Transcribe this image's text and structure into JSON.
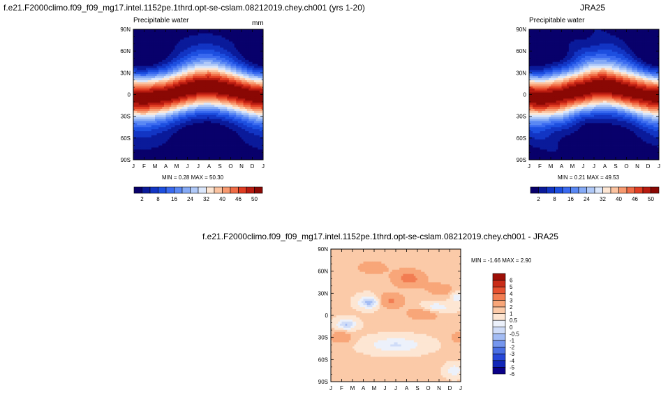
{
  "charts": {
    "model": {
      "title": "f.e21.F2000climo.f09_f09_mg17.intel.1152pe.1thrd.opt-se-cslam.08212019.chey.ch001 (yrs 1-20)",
      "subtitle": "Precipitable water",
      "units": "mm",
      "stats": "MIN =   0.28 MAX =  50.30"
    },
    "obs": {
      "title": "JRA25",
      "subtitle": "Precipitable water",
      "stats": "MIN =   0.21 MAX =  49.53"
    },
    "diff": {
      "title": "f.e21.F2000climo.f09_f09_mg17.intel.1152pe.1thrd.opt-se-cslam.08212019.chey.ch001 - JRA25",
      "stats": "MIN =  -1.66 MAX =   2.90"
    }
  },
  "axes": {
    "x_ticks": [
      "J",
      "F",
      "M",
      "A",
      "M",
      "J",
      "J",
      "A",
      "S",
      "O",
      "N",
      "D",
      "J"
    ],
    "y_ticks": [
      "90N",
      "60N",
      "30N",
      "0",
      "30S",
      "60S",
      "90S"
    ]
  },
  "colors": {
    "main_levels": [
      "#08006b",
      "#0a1a9a",
      "#1235c4",
      "#1d4fe0",
      "#3a6af0",
      "#5a88f4",
      "#85aaf6",
      "#b0c9f8",
      "#dbe7fb",
      "#fde6d3",
      "#fbc3a0",
      "#f89a70",
      "#f06c46",
      "#e03d22",
      "#b81b10",
      "#8a0804"
    ],
    "diff_levels": [
      "#0a0088",
      "#1126b8",
      "#2647d8",
      "#4a6fe4",
      "#7596ee",
      "#a3bcf4",
      "#cfdcf8",
      "#ecf1fb",
      "#fde6d3",
      "#fbcaa8",
      "#f8a679",
      "#f27d52",
      "#e65130",
      "#c92c18",
      "#9e0f07"
    ]
  },
  "colorbars": {
    "main_labels": [
      "2",
      "8",
      "16",
      "24",
      "32",
      "40",
      "46",
      "50"
    ],
    "diff_labels": [
      "6",
      "5",
      "4",
      "3",
      "2",
      "1",
      "0.5",
      "0",
      "-0.5",
      "-1",
      "-2",
      "-3",
      "-4",
      "-5",
      "-6"
    ]
  },
  "chart_data": [
    {
      "type": "heatmap",
      "title": "f.e21.F2000climo.f09_f09_mg17.intel.1152pe.1thrd.opt-se-cslam.08212019.chey.ch001 (yrs 1-20)",
      "subtitle": "Precipitable water",
      "units": "mm",
      "x": [
        "J",
        "F",
        "M",
        "A",
        "M",
        "J",
        "J",
        "A",
        "S",
        "O",
        "N",
        "D",
        "J"
      ],
      "y": [
        "90N",
        "60N",
        "30N",
        "0",
        "30S",
        "60S",
        "90S"
      ],
      "levels": [
        2,
        8,
        16,
        24,
        32,
        40,
        46,
        50
      ],
      "itcz_lat_by_month": [
        -4,
        -5,
        -3,
        -1,
        3,
        7,
        10,
        11,
        9,
        6,
        2,
        -2,
        -4
      ],
      "min": 0.28,
      "max": 50.3
    },
    {
      "type": "heatmap",
      "title": "JRA25",
      "subtitle": "Precipitable water",
      "x": [
        "J",
        "F",
        "M",
        "A",
        "M",
        "J",
        "J",
        "A",
        "S",
        "O",
        "N",
        "D",
        "J"
      ],
      "y": [
        "90N",
        "60N",
        "30N",
        "0",
        "30S",
        "60S",
        "90S"
      ],
      "levels": [
        2,
        8,
        16,
        24,
        32,
        40,
        46,
        50
      ],
      "itcz_lat_by_month": [
        -4,
        -5,
        -3,
        -1,
        3,
        7,
        10,
        11,
        9,
        6,
        2,
        -2,
        -4
      ],
      "min": 0.21,
      "max": 49.53
    },
    {
      "type": "heatmap",
      "title": "f.e21.F2000climo.f09_f09_mg17.intel.1152pe.1thrd.opt-se-cslam.08212019.chey.ch001 - JRA25",
      "x": [
        "J",
        "F",
        "M",
        "A",
        "M",
        "J",
        "J",
        "A",
        "S",
        "O",
        "N",
        "D",
        "J"
      ],
      "y": [
        "90N",
        "60N",
        "30N",
        "0",
        "30S",
        "60S",
        "90S"
      ],
      "levels": [
        -6,
        -5,
        -4,
        -3,
        -2,
        -1,
        -0.5,
        0,
        0.5,
        1,
        2,
        3,
        4,
        5,
        6
      ],
      "min": -1.66,
      "max": 2.9
    }
  ]
}
